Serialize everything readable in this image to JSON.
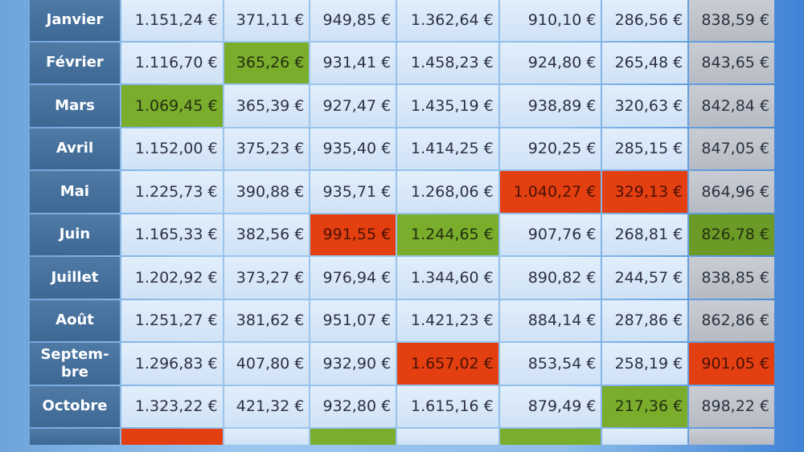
{
  "rows": [
    {
      "month": "Janvier",
      "values": [
        "1.151,24 €",
        "371,11 €",
        "949,85 €",
        "1.362,64 €",
        "910,10 €",
        "286,56 €",
        "838,59 €"
      ],
      "marks": [
        "",
        "",
        "",
        "",
        "",
        "",
        ""
      ]
    },
    {
      "month": "Février",
      "values": [
        "1.116,70 €",
        "365,26 €",
        "931,41 €",
        "1.458,23 €",
        "924,80 €",
        "265,48 €",
        "843,65 €"
      ],
      "marks": [
        "",
        "lo",
        "",
        "",
        "",
        "",
        ""
      ]
    },
    {
      "month": "Mars",
      "values": [
        "1.069,45 €",
        "365,39 €",
        "927,47 €",
        "1.435,19 €",
        "938,89 €",
        "320,63 €",
        "842,84 €"
      ],
      "marks": [
        "lo",
        "",
        "",
        "",
        "",
        "",
        ""
      ]
    },
    {
      "month": "Avril",
      "values": [
        "1.152,00 €",
        "375,23 €",
        "935,40 €",
        "1.414,25 €",
        "920,25 €",
        "285,15 €",
        "847,05 €"
      ],
      "marks": [
        "",
        "",
        "",
        "",
        "",
        "",
        ""
      ]
    },
    {
      "month": "Mai",
      "values": [
        "1.225,73 €",
        "390,88 €",
        "935,71 €",
        "1.268,06 €",
        "1.040,27 €",
        "329,13 €",
        "864,96 €"
      ],
      "marks": [
        "",
        "",
        "",
        "",
        "hi",
        "hi",
        ""
      ]
    },
    {
      "month": "Juin",
      "values": [
        "1.165,33 €",
        "382,56 €",
        "991,55 €",
        "1.244,65 €",
        "907,76 €",
        "268,81 €",
        "826,78 €"
      ],
      "marks": [
        "",
        "",
        "hi",
        "lo",
        "",
        "",
        "lo"
      ]
    },
    {
      "month": "Juillet",
      "values": [
        "1.202,92 €",
        "373,27 €",
        "976,94 €",
        "1.344,60 €",
        "890,82 €",
        "244,57 €",
        "838,85 €"
      ],
      "marks": [
        "",
        "",
        "",
        "",
        "",
        "",
        ""
      ]
    },
    {
      "month": "Août",
      "values": [
        "1.251,27 €",
        "381,62 €",
        "951,07 €",
        "1.421,23 €",
        "884,14 €",
        "287,86 €",
        "862,86 €"
      ],
      "marks": [
        "",
        "",
        "",
        "",
        "",
        "",
        ""
      ]
    },
    {
      "month": "Septem-\nbre",
      "values": [
        "1.296,83 €",
        "407,80 €",
        "932,90 €",
        "1.657,02 €",
        "853,54 €",
        "258,19 €",
        "901,05 €"
      ],
      "marks": [
        "",
        "",
        "",
        "hi",
        "",
        "",
        "hi"
      ]
    },
    {
      "month": "Octobre",
      "values": [
        "1.323,22 €",
        "421,32 €",
        "932,80 €",
        "1.615,16 €",
        "879,49 €",
        "217,36 €",
        "898,22 €"
      ],
      "marks": [
        "",
        "",
        "",
        "",
        "",
        "lo",
        ""
      ]
    }
  ],
  "partial_row_marks": [
    "hi",
    "",
    "lo",
    "",
    "lo",
    "",
    ""
  ]
}
